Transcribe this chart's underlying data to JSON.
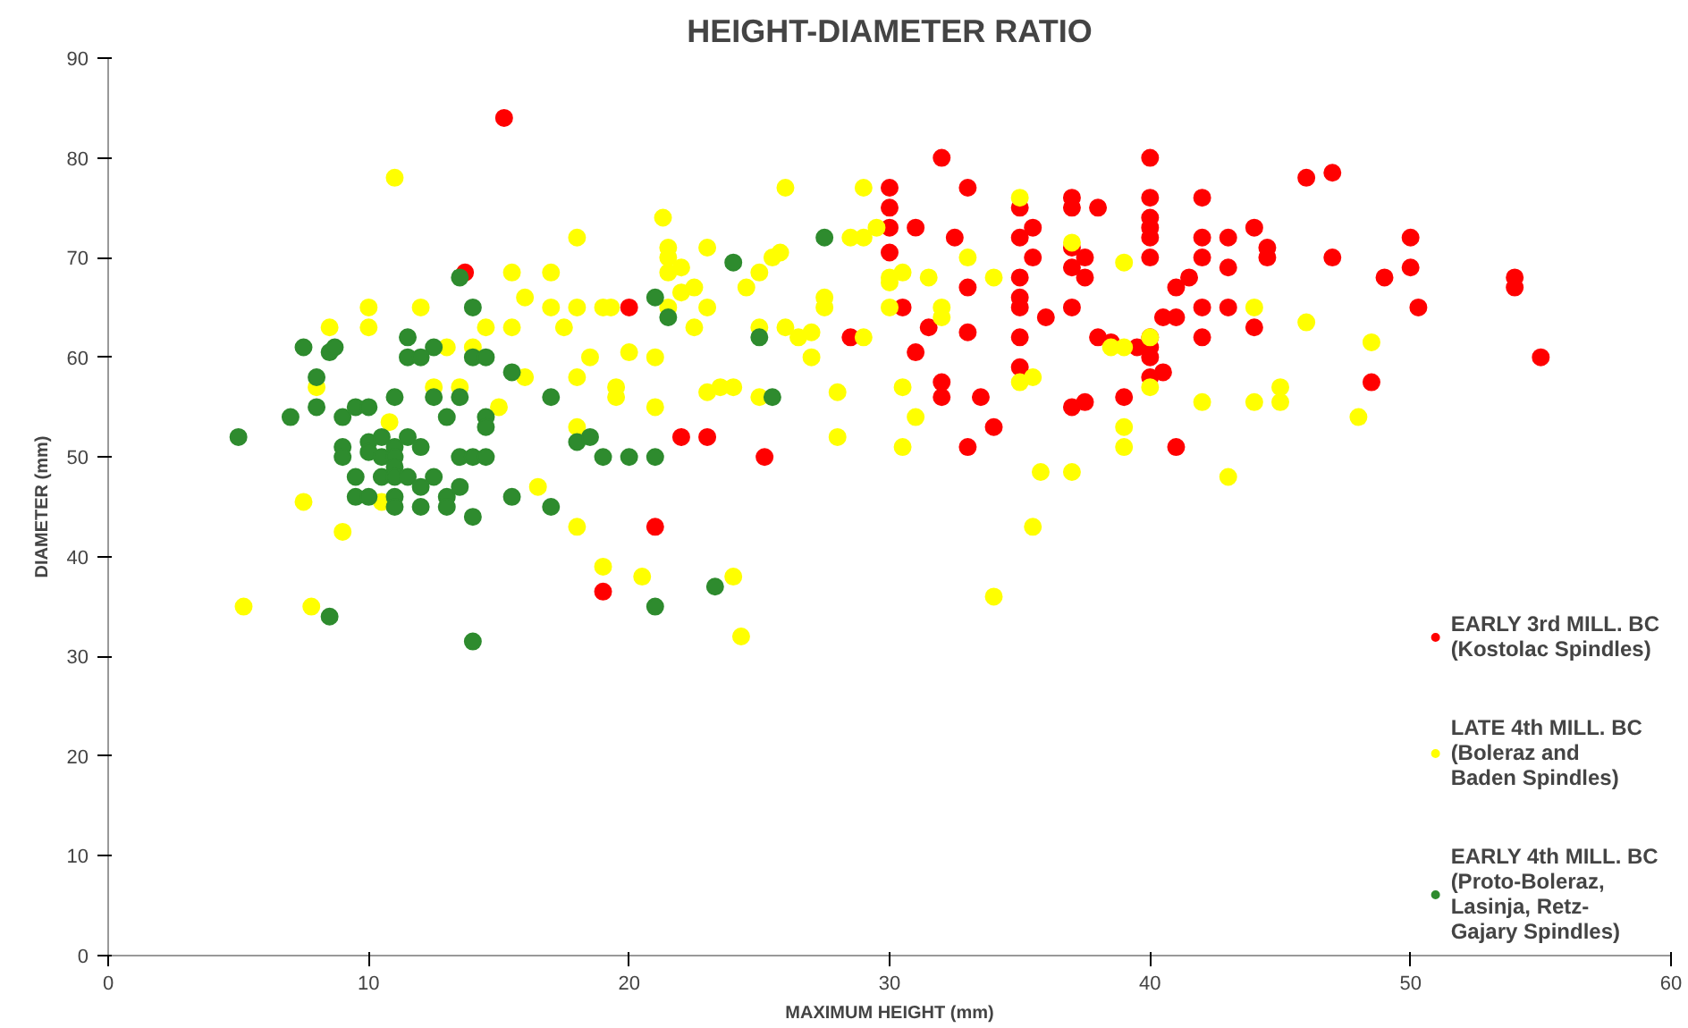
{
  "chart_data": {
    "type": "scatter",
    "title": "HEIGHT-DIAMETER RATIO",
    "xlabel": "MAXIMUM HEIGHT (mm)",
    "ylabel": "DIAMETER (mm)",
    "xlim": [
      0,
      60
    ],
    "ylim": [
      0,
      90
    ],
    "xticks": [
      0,
      10,
      20,
      30,
      40,
      50,
      60
    ],
    "yticks": [
      0,
      10,
      20,
      30,
      40,
      50,
      60,
      70,
      80,
      90
    ],
    "grid": false,
    "legend": "right",
    "marker": "circle",
    "series": [
      {
        "name": "EARLY 3rd MILL. BC\n(Kostolac Spindles)",
        "color": "#ff0000",
        "x": [
          15.2,
          13.7,
          20.0,
          22,
          23,
          25.2,
          19,
          21,
          28.5,
          30,
          30,
          30,
          30,
          31,
          30.5,
          31,
          31.5,
          32,
          32.5,
          33,
          33,
          33,
          32,
          32,
          33,
          33.5,
          34,
          35,
          35,
          35,
          35,
          35,
          35,
          35,
          35.5,
          35.5,
          36,
          37,
          37,
          37,
          37,
          37,
          37,
          37.5,
          37.5,
          37.5,
          38,
          38,
          38.5,
          39,
          39.5,
          40,
          40,
          40,
          40,
          40,
          40,
          40,
          40,
          40,
          40,
          40.5,
          40.5,
          41,
          41,
          41.5,
          41,
          42,
          42,
          42,
          42,
          42,
          43,
          43,
          43,
          44,
          44.5,
          44.5,
          44,
          46,
          47,
          47,
          49,
          48.5,
          50,
          50,
          50.3,
          54,
          54,
          55
        ],
        "values": [
          84,
          68.5,
          65,
          52,
          52,
          50,
          36.5,
          43,
          62,
          77,
          75,
          73,
          70.5,
          73,
          65,
          60.5,
          63,
          80,
          72,
          77,
          67,
          62.5,
          56,
          57.5,
          51,
          56,
          53,
          75,
          72,
          68,
          66,
          65,
          62,
          59,
          73,
          70,
          64,
          76,
          75,
          71,
          69,
          65,
          55,
          70,
          55.5,
          68,
          75,
          62,
          61.5,
          56,
          61,
          80,
          76,
          74,
          73,
          72,
          70,
          62,
          61,
          58,
          60,
          64,
          58.5,
          64,
          67,
          68,
          51,
          76,
          72,
          70,
          62,
          65,
          69,
          72,
          65,
          73,
          71,
          70,
          63,
          78,
          78.5,
          70,
          68,
          57.5,
          72,
          69,
          65,
          68,
          67,
          60
        ]
      },
      {
        "name": "LATE 4th MILL. BC\n(Boleraz and\nBaden Spindles)",
        "color": "#ffff00",
        "x": [
          5.2,
          7.8,
          7.5,
          8.5,
          9,
          8,
          10,
          10,
          10.5,
          11,
          10.8,
          12,
          12.5,
          13,
          13.5,
          14,
          14.5,
          15,
          15.5,
          15.5,
          16,
          16,
          16.5,
          17,
          17,
          17.5,
          18,
          18,
          18,
          18,
          18,
          18.5,
          19,
          19,
          19.5,
          19.5,
          19.3,
          20,
          20.5,
          21,
          21,
          21.3,
          21.5,
          21.5,
          21.5,
          21.5,
          22,
          22,
          22.5,
          22.5,
          23,
          23,
          23,
          23.5,
          24,
          24,
          24.3,
          24.5,
          25,
          25,
          25,
          25.5,
          25.8,
          26,
          26,
          26.5,
          27,
          27,
          27.5,
          27.5,
          28,
          28,
          28.5,
          29,
          29,
          29,
          29.5,
          30,
          30,
          30,
          30.5,
          30.5,
          30.5,
          31,
          31.5,
          32,
          32,
          33,
          34,
          34,
          35,
          35,
          35.5,
          35.5,
          35.8,
          37,
          37,
          38.5,
          39,
          39,
          39,
          39,
          40,
          40,
          42,
          43,
          44,
          44,
          45,
          45,
          46,
          48,
          48.5
        ],
        "values": [
          35,
          35,
          45.5,
          63,
          42.5,
          57,
          63,
          65,
          45.5,
          78,
          53.5,
          65,
          57,
          61,
          57,
          61,
          63,
          55,
          63,
          68.5,
          66,
          58,
          47,
          65,
          68.5,
          63,
          72,
          65,
          58,
          53,
          43,
          60,
          65,
          39,
          57,
          56,
          65,
          60.5,
          38,
          60,
          55,
          74,
          71,
          70,
          68.5,
          65,
          69,
          66.5,
          63,
          67,
          71,
          65,
          56.5,
          57,
          57,
          38,
          32,
          67,
          68.5,
          63,
          56,
          70,
          70.5,
          77,
          63,
          62,
          60,
          62.5,
          66,
          65,
          52,
          56.5,
          72,
          77,
          62,
          72,
          73,
          68,
          67.5,
          65,
          68.5,
          57,
          51,
          54,
          68,
          64,
          65,
          70,
          68,
          36,
          76,
          57.5,
          58,
          43,
          48.5,
          48.5,
          71.5,
          61,
          69.5,
          61,
          53,
          51,
          62,
          57,
          55.5,
          48,
          65,
          55.5,
          57,
          55.5,
          63.5,
          54,
          61.5
        ]
      },
      {
        "name": "EARLY 4th MILL. BC\n(Proto-Boleraz,\nLasinja, Retz-\nGajary Spindles)",
        "color": "#2e8b2e",
        "x": [
          5,
          7,
          7.5,
          8,
          8,
          8.5,
          8.5,
          8.7,
          9,
          9,
          9,
          9.5,
          9.5,
          9.5,
          10,
          10,
          10,
          10,
          10.5,
          10.5,
          10.5,
          11,
          11,
          11,
          11,
          11,
          11,
          11,
          11.5,
          11.5,
          11.5,
          11.5,
          12,
          12,
          12,
          12,
          12.5,
          12.5,
          12.5,
          13,
          13,
          13,
          13.5,
          13.5,
          13.5,
          13.5,
          14,
          14,
          14,
          14,
          14,
          14.5,
          14.5,
          14.5,
          14.5,
          15.5,
          15.5,
          17,
          17,
          18,
          18.5,
          19,
          20,
          21,
          21,
          21,
          21.5,
          23.3,
          24,
          25,
          25.5,
          27.5
        ],
        "values": [
          52,
          54,
          61,
          58,
          55,
          60.5,
          34,
          61,
          54,
          51,
          50,
          55,
          48,
          46,
          55,
          51.5,
          50.5,
          46,
          52,
          50,
          48,
          56,
          51,
          50,
          49,
          48,
          46,
          45,
          62,
          60,
          52,
          48,
          60,
          51,
          47,
          45,
          61,
          56,
          48,
          54,
          46,
          45,
          68,
          56,
          50,
          47,
          65,
          60,
          50,
          44,
          31.5,
          54,
          60,
          50,
          53,
          58.5,
          46,
          56,
          45,
          51.5,
          52,
          50,
          50,
          50,
          35,
          66,
          64,
          37,
          69.5,
          62,
          56,
          72
        ]
      }
    ]
  }
}
